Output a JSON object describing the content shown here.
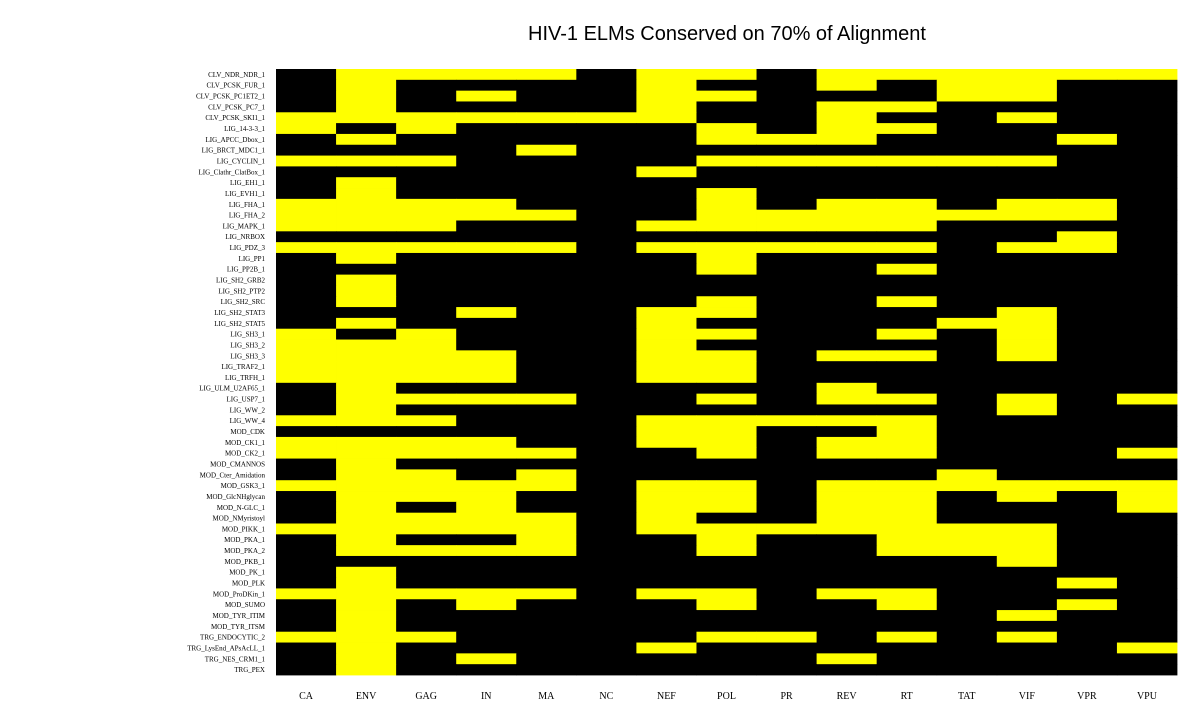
{
  "chart_data": {
    "type": "heatmap",
    "title": "HIV-1 ELMs Conserved on 70% of Alignment",
    "xlabel": "",
    "ylabel": "",
    "colors": {
      "present": "#ffff00",
      "absent": "#000000",
      "background": "#ffffff"
    },
    "columns": [
      "CA",
      "ENV",
      "GAG",
      "IN",
      "MA",
      "NC",
      "NEF",
      "POL",
      "PR",
      "REV",
      "RT",
      "TAT",
      "VIF",
      "VPR",
      "VPU"
    ],
    "rows": [
      "CLV_NDR_NDR_1",
      "CLV_PCSK_FUR_1",
      "CLV_PCSK_PC1ET2_1",
      "CLV_PCSK_PC7_1",
      "CLV_PCSK_SKI1_1",
      "LIG_14-3-3_1",
      "LIG_APCC_Dbox_1",
      "LIG_BRCT_MDC1_1",
      "LIG_CYCLIN_1",
      "LIG_Clathr_ClatBox_1",
      "LIG_EH1_1",
      "LIG_EVH1_1",
      "LIG_FHA_1",
      "LIG_FHA_2",
      "LIG_MAPK_1",
      "LIG_NRBOX",
      "LIG_PDZ_3",
      "LIG_PP1",
      "LIG_PP2B_1",
      "LIG_SH2_GRB2",
      "LIG_SH2_PTP2",
      "LIG_SH2_SRC",
      "LIG_SH2_STAT3",
      "LIG_SH2_STAT5",
      "LIG_SH3_1",
      "LIG_SH3_2",
      "LIG_SH3_3",
      "LIG_TRAF2_1",
      "LIG_TRFH_1",
      "LIG_ULM_U2AF65_1",
      "LIG_USP7_1",
      "LIG_WW_2",
      "LIG_WW_4",
      "MOD_CDK",
      "MOD_CK1_1",
      "MOD_CK2_1",
      "MOD_CMANNOS",
      "MOD_Cter_Amidation",
      "MOD_GSK3_1",
      "MOD_GlcNHglycan",
      "MOD_N-GLC_1",
      "MOD_NMyristoyl",
      "MOD_PIKK_1",
      "MOD_PKA_1",
      "MOD_PKA_2",
      "MOD_PKB_1",
      "MOD_PK_1",
      "MOD_PLK",
      "MOD_ProDKin_1",
      "MOD_SUMO",
      "MOD_TYR_ITIM",
      "MOD_TYR_ITSM",
      "TRG_ENDOCYTIC_2",
      "TRG_LysEnd_APsAcLL_1",
      "TRG_NES_CRM1_1",
      "TRG_PEX"
    ],
    "matrix": [
      [
        0,
        1,
        1,
        1,
        1,
        0,
        1,
        1,
        0,
        1,
        1,
        1,
        1,
        1,
        1
      ],
      [
        0,
        1,
        0,
        0,
        0,
        0,
        1,
        0,
        0,
        1,
        0,
        1,
        1,
        0,
        0
      ],
      [
        0,
        1,
        0,
        1,
        0,
        0,
        1,
        1,
        0,
        0,
        0,
        1,
        1,
        0,
        0
      ],
      [
        0,
        1,
        0,
        0,
        0,
        0,
        1,
        0,
        0,
        1,
        1,
        0,
        0,
        0,
        0
      ],
      [
        1,
        1,
        1,
        1,
        1,
        1,
        1,
        0,
        0,
        1,
        0,
        0,
        1,
        0,
        0
      ],
      [
        1,
        0,
        1,
        0,
        0,
        0,
        0,
        1,
        0,
        1,
        1,
        0,
        0,
        0,
        0
      ],
      [
        0,
        1,
        0,
        0,
        0,
        0,
        0,
        1,
        1,
        1,
        0,
        0,
        0,
        1,
        0
      ],
      [
        0,
        0,
        0,
        0,
        1,
        0,
        0,
        0,
        0,
        0,
        0,
        0,
        0,
        0,
        0
      ],
      [
        1,
        1,
        1,
        0,
        0,
        0,
        0,
        1,
        1,
        1,
        1,
        1,
        1,
        0,
        0
      ],
      [
        0,
        0,
        0,
        0,
        0,
        0,
        1,
        0,
        0,
        0,
        0,
        0,
        0,
        0,
        0
      ],
      [
        0,
        1,
        0,
        0,
        0,
        0,
        0,
        0,
        0,
        0,
        0,
        0,
        0,
        0,
        0
      ],
      [
        0,
        1,
        0,
        0,
        0,
        0,
        0,
        1,
        0,
        0,
        0,
        0,
        0,
        0,
        0
      ],
      [
        1,
        1,
        1,
        1,
        0,
        0,
        0,
        1,
        0,
        1,
        1,
        0,
        1,
        1,
        0
      ],
      [
        1,
        1,
        1,
        1,
        1,
        0,
        0,
        1,
        1,
        1,
        1,
        1,
        1,
        1,
        0
      ],
      [
        1,
        1,
        1,
        0,
        0,
        0,
        1,
        1,
        1,
        1,
        1,
        0,
        0,
        0,
        0
      ],
      [
        0,
        0,
        0,
        0,
        0,
        0,
        0,
        0,
        0,
        0,
        0,
        0,
        0,
        1,
        0
      ],
      [
        1,
        1,
        1,
        1,
        1,
        0,
        1,
        1,
        1,
        1,
        1,
        0,
        1,
        1,
        0
      ],
      [
        0,
        1,
        0,
        0,
        0,
        0,
        0,
        1,
        0,
        0,
        0,
        0,
        0,
        0,
        0
      ],
      [
        0,
        0,
        0,
        0,
        0,
        0,
        0,
        1,
        0,
        0,
        1,
        0,
        0,
        0,
        0
      ],
      [
        0,
        1,
        0,
        0,
        0,
        0,
        0,
        0,
        0,
        0,
        0,
        0,
        0,
        0,
        0
      ],
      [
        0,
        1,
        0,
        0,
        0,
        0,
        0,
        0,
        0,
        0,
        0,
        0,
        0,
        0,
        0
      ],
      [
        0,
        1,
        0,
        0,
        0,
        0,
        0,
        1,
        0,
        0,
        1,
        0,
        0,
        0,
        0
      ],
      [
        0,
        0,
        0,
        1,
        0,
        0,
        1,
        1,
        0,
        0,
        0,
        0,
        1,
        0,
        0
      ],
      [
        0,
        1,
        0,
        0,
        0,
        0,
        1,
        0,
        0,
        0,
        0,
        1,
        1,
        0,
        0
      ],
      [
        1,
        0,
        1,
        0,
        0,
        0,
        1,
        1,
        0,
        0,
        1,
        0,
        1,
        0,
        0
      ],
      [
        1,
        1,
        1,
        0,
        0,
        0,
        1,
        0,
        0,
        0,
        0,
        0,
        1,
        0,
        0
      ],
      [
        1,
        1,
        1,
        1,
        0,
        0,
        1,
        1,
        0,
        1,
        1,
        0,
        1,
        0,
        0
      ],
      [
        1,
        1,
        1,
        1,
        0,
        0,
        1,
        1,
        0,
        0,
        0,
        0,
        0,
        0,
        0
      ],
      [
        1,
        1,
        1,
        1,
        0,
        0,
        1,
        1,
        0,
        0,
        0,
        0,
        0,
        0,
        0
      ],
      [
        0,
        1,
        0,
        0,
        0,
        0,
        0,
        0,
        0,
        1,
        0,
        0,
        0,
        0,
        0
      ],
      [
        0,
        1,
        1,
        1,
        1,
        0,
        0,
        1,
        0,
        1,
        1,
        0,
        1,
        0,
        1
      ],
      [
        0,
        1,
        0,
        0,
        0,
        0,
        0,
        0,
        0,
        0,
        0,
        0,
        1,
        0,
        0
      ],
      [
        1,
        1,
        1,
        0,
        0,
        0,
        1,
        1,
        1,
        1,
        1,
        0,
        0,
        0,
        0
      ],
      [
        0,
        0,
        0,
        0,
        0,
        0,
        1,
        1,
        0,
        0,
        1,
        0,
        0,
        0,
        0
      ],
      [
        1,
        1,
        1,
        1,
        0,
        0,
        1,
        1,
        0,
        1,
        1,
        0,
        0,
        0,
        0
      ],
      [
        1,
        1,
        1,
        1,
        1,
        0,
        0,
        1,
        0,
        1,
        1,
        0,
        0,
        0,
        1
      ],
      [
        0,
        1,
        0,
        0,
        0,
        0,
        0,
        0,
        0,
        0,
        0,
        0,
        0,
        0,
        0
      ],
      [
        0,
        1,
        1,
        0,
        1,
        0,
        0,
        0,
        0,
        0,
        0,
        1,
        0,
        0,
        0
      ],
      [
        1,
        1,
        1,
        1,
        1,
        0,
        1,
        1,
        0,
        1,
        1,
        1,
        1,
        1,
        1
      ],
      [
        0,
        1,
        1,
        1,
        0,
        0,
        1,
        1,
        0,
        1,
        1,
        0,
        1,
        0,
        1
      ],
      [
        0,
        1,
        0,
        1,
        0,
        0,
        1,
        1,
        0,
        1,
        1,
        0,
        0,
        0,
        1
      ],
      [
        0,
        1,
        1,
        1,
        1,
        0,
        1,
        0,
        0,
        1,
        1,
        0,
        0,
        0,
        0
      ],
      [
        1,
        1,
        1,
        1,
        1,
        0,
        1,
        1,
        1,
        1,
        1,
        1,
        1,
        0,
        0
      ],
      [
        0,
        1,
        0,
        0,
        1,
        0,
        0,
        1,
        0,
        0,
        1,
        1,
        1,
        0,
        0
      ],
      [
        0,
        1,
        1,
        1,
        1,
        0,
        0,
        1,
        0,
        0,
        1,
        1,
        1,
        0,
        0
      ],
      [
        0,
        0,
        0,
        0,
        0,
        0,
        0,
        0,
        0,
        0,
        0,
        0,
        1,
        0,
        0
      ],
      [
        0,
        1,
        0,
        0,
        0,
        0,
        0,
        0,
        0,
        0,
        0,
        0,
        0,
        0,
        0
      ],
      [
        0,
        1,
        0,
        0,
        0,
        0,
        0,
        0,
        0,
        0,
        0,
        0,
        0,
        1,
        0
      ],
      [
        1,
        1,
        1,
        1,
        1,
        0,
        1,
        1,
        0,
        1,
        1,
        0,
        0,
        0,
        0
      ],
      [
        0,
        1,
        0,
        1,
        0,
        0,
        0,
        1,
        0,
        0,
        1,
        0,
        0,
        1,
        0
      ],
      [
        0,
        1,
        0,
        0,
        0,
        0,
        0,
        0,
        0,
        0,
        0,
        0,
        1,
        0,
        0
      ],
      [
        0,
        1,
        0,
        0,
        0,
        0,
        0,
        0,
        0,
        0,
        0,
        0,
        0,
        0,
        0
      ],
      [
        1,
        1,
        1,
        0,
        0,
        0,
        0,
        1,
        1,
        0,
        1,
        0,
        1,
        0,
        0
      ],
      [
        0,
        1,
        0,
        0,
        0,
        0,
        1,
        0,
        0,
        0,
        0,
        0,
        0,
        0,
        1
      ],
      [
        0,
        1,
        0,
        1,
        0,
        0,
        0,
        0,
        0,
        1,
        0,
        0,
        0,
        0,
        0
      ],
      [
        0,
        1,
        0,
        0,
        0,
        0,
        0,
        0,
        0,
        0,
        0,
        0,
        0,
        0,
        0
      ]
    ]
  }
}
